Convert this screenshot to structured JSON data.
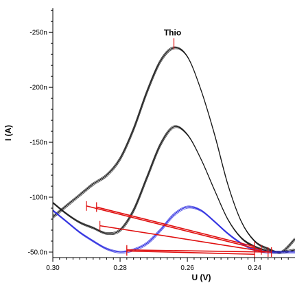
{
  "chart_data": {
    "type": "line",
    "title": "",
    "xlabel": "U (V)",
    "ylabel": "I (A)",
    "x_reversed": true,
    "y_reversed": true,
    "xlim": [
      0.3,
      0.228
    ],
    "ylim": [
      -45,
      -272
    ],
    "x_ticks": [
      0.3,
      0.28,
      0.26,
      0.24
    ],
    "x_tick_labels": [
      "0.30",
      "0.28",
      "0.26",
      "0.24"
    ],
    "y_ticks": [
      -50,
      -100,
      -150,
      -200,
      -250
    ],
    "y_tick_labels": [
      "-50.0n",
      "-100n",
      "-150n",
      "-200n",
      "-250n"
    ],
    "grid": false,
    "legend": "none",
    "colors": {
      "sample": "#1a1a1a",
      "blank": "#2f2fe0",
      "baseline": "#e01010",
      "marker": "#e01010",
      "axis": "#000000"
    },
    "series": [
      {
        "color": "#1a1a1a",
        "x": [
          0.3,
          0.296,
          0.292,
          0.288,
          0.284,
          0.28,
          0.276,
          0.272,
          0.268,
          0.264,
          0.26,
          0.256,
          0.252,
          0.248,
          0.244,
          0.24,
          0.236,
          0.232,
          0.228
        ],
        "y": [
          -82,
          -92,
          -102,
          -112,
          -120,
          -135,
          -162,
          -196,
          -224,
          -236,
          -228,
          -198,
          -158,
          -112,
          -78,
          -60,
          -53,
          -50,
          -62
        ]
      },
      {
        "color": "#1a1a1a",
        "x": [
          0.3,
          0.296,
          0.292,
          0.288,
          0.284,
          0.28,
          0.276,
          0.272,
          0.268,
          0.264,
          0.26,
          0.256,
          0.252,
          0.248,
          0.244,
          0.24,
          0.236,
          0.232,
          0.228
        ],
        "y": [
          -95,
          -85,
          -77,
          -72,
          -67,
          -70,
          -88,
          -118,
          -148,
          -164,
          -157,
          -135,
          -107,
          -80,
          -63,
          -55,
          -51,
          -50,
          -52
        ]
      },
      {
        "color": "#2f2fe0",
        "x": [
          0.3,
          0.296,
          0.292,
          0.288,
          0.284,
          0.28,
          0.276,
          0.272,
          0.268,
          0.264,
          0.26,
          0.256,
          0.252,
          0.248,
          0.244,
          0.24,
          0.236,
          0.232,
          0.228
        ],
        "y": [
          -88,
          -78,
          -68,
          -60,
          -53,
          -50,
          -52,
          -58,
          -70,
          -84,
          -91,
          -88,
          -78,
          -67,
          -58,
          -52,
          -50,
          -50,
          -50
        ]
      }
    ],
    "baselines": [
      {
        "color": "#e01010",
        "x": [
          0.29,
          0.238
        ],
        "y": [
          -92,
          -52
        ]
      },
      {
        "color": "#e01010",
        "x": [
          0.287,
          0.24
        ],
        "y": [
          -91,
          -55
        ]
      },
      {
        "color": "#e01010",
        "x": [
          0.286,
          0.236
        ],
        "y": [
          -74,
          -50
        ]
      },
      {
        "color": "#e01010",
        "x": [
          0.278,
          0.235
        ],
        "y": [
          -52,
          -50
        ]
      },
      {
        "color": "#e01010",
        "x": [
          0.278,
          0.24
        ],
        "y": [
          -51,
          -48
        ]
      }
    ],
    "annotations": [
      {
        "text": "Thio",
        "x": 0.264,
        "y": -236
      }
    ]
  }
}
